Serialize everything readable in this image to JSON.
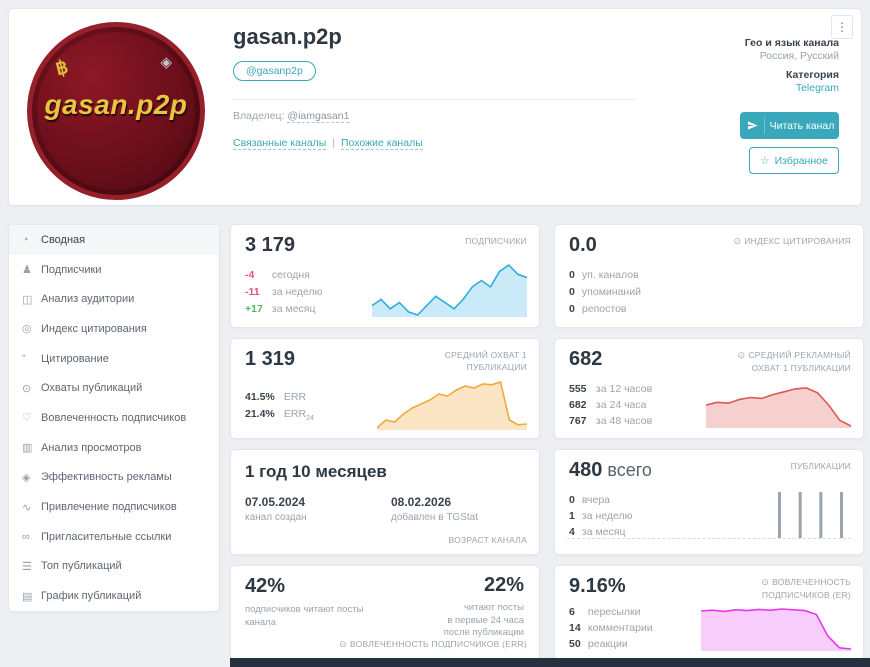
{
  "icons": {
    "target": "⊙",
    "star": "☆",
    "menu": "⋮"
  },
  "colors": {
    "accent_teal": "#38a8ba",
    "negative": "#e2556a",
    "positive": "#53b86a",
    "footer": "#263041"
  },
  "header": {
    "title": "gasan.p2p",
    "username_badge": "@gasanp2p",
    "owner_label": "Владелец:",
    "owner_link": "@iamgasan1",
    "related_link": "Связанные каналы",
    "links_divider": "|",
    "similar_link": "Похожие каналы",
    "geo_label": "Гео и язык канала",
    "geo_value": "Россия, Русский",
    "category_label": "Категория",
    "category_value": "Telegram",
    "read_button": "Читать канал",
    "favorite_button": "Избранное",
    "avatar": {
      "text": "gasan.p2p",
      "btc_symbol": "฿",
      "eth_symbol": "◈"
    }
  },
  "sidebar": {
    "active_index": 0,
    "items": [
      {
        "icon": "◔",
        "label": "Сводная"
      },
      {
        "icon": "♟",
        "label": "Подписчики"
      },
      {
        "icon": "◫",
        "label": "Анализ аудитории"
      },
      {
        "icon": "◎",
        "label": "Индекс цитирования"
      },
      {
        "icon": "”",
        "label": "Цитирование"
      },
      {
        "icon": "⊙",
        "label": "Охваты публикаций"
      },
      {
        "icon": "♡",
        "label": "Вовлеченность подписчиков"
      },
      {
        "icon": "▥",
        "label": "Анализ просмотров"
      },
      {
        "icon": "◈",
        "label": "Эффективность рекламы"
      },
      {
        "icon": "∿",
        "label": "Привлечение подписчиков"
      },
      {
        "icon": "∞",
        "label": "Пригласительные ссылки"
      },
      {
        "icon": "☰",
        "label": "Топ публикаций"
      },
      {
        "icon": "▤",
        "label": "График публикаций"
      }
    ]
  },
  "cards": {
    "subscribers": {
      "value": "3 179",
      "label": "ПОДПИСЧИКИ",
      "rows": [
        {
          "value": "-4",
          "label": "сегодня"
        },
        {
          "value": "-11",
          "label": "за неделю"
        },
        {
          "value": "+17",
          "label": "за месяц"
        }
      ]
    },
    "citation_index": {
      "value": "0.0",
      "label": "ИНДЕКС ЦИТИРОВАНИЯ",
      "rows": [
        {
          "value": "0",
          "label": "уп. каналов"
        },
        {
          "value": "0",
          "label": "упоминаний"
        },
        {
          "value": "0",
          "label": "репостов"
        }
      ]
    },
    "avg_reach": {
      "value": "1 319",
      "label": "СРЕДНИЙ ОХВАТ 1 ПУБЛИКАЦИИ",
      "rows": [
        {
          "value": "41.5%",
          "label": "ERR"
        },
        {
          "value": "21.4%",
          "label": "ERR",
          "label_sub": "24"
        }
      ]
    },
    "ad_reach": {
      "value": "682",
      "label": "СРЕДНИЙ РЕКЛАМНЫЙ ОХВАТ 1 ПУБЛИКАЦИИ",
      "rows": [
        {
          "value": "555",
          "label": "за 12 часов"
        },
        {
          "value": "682",
          "label": "за 24 часа"
        },
        {
          "value": "767",
          "label": "за 48 часов"
        }
      ]
    },
    "age": {
      "value": "1 год 10 месяцев",
      "label": "ВОЗРАСТ КАНАЛА",
      "created_date": "07.05.2024",
      "created_label": "канал создан",
      "added_date": "08.02.2026",
      "added_label": "добавлен в TGStat"
    },
    "publications": {
      "value": "480",
      "suffix": "всего",
      "label": "ПУБЛИКАЦИИ",
      "rows": [
        {
          "value": "0",
          "label": "вчера"
        },
        {
          "value": "1",
          "label": "за неделю"
        },
        {
          "value": "4",
          "label": "за месяц"
        }
      ]
    },
    "err": {
      "left_value": "42%",
      "left_caption": "подписчиков читают посты канала",
      "right_value": "22%",
      "right_caption_1": "читают посты",
      "right_caption_2": "в первые 24 часа",
      "right_caption_3": "после публикации",
      "label": "ВОВЛЕЧЕННОСТЬ ПОДПИСЧИКОВ (ERR)"
    },
    "er": {
      "value": "9.16%",
      "label": "ВОВЛЕЧЕННОСТЬ ПОДПИСЧИКОВ (ER)",
      "rows": [
        {
          "value": "6",
          "label": "пересылки"
        },
        {
          "value": "14",
          "label": "комментарии"
        },
        {
          "value": "50",
          "label": "реакции"
        }
      ]
    }
  },
  "charts": {
    "subscribers": {
      "type": "line",
      "color": "#2fadde",
      "fill": "rgba(47,173,222,0.25)",
      "values": [
        6,
        7,
        5.5,
        6.5,
        5,
        4.5,
        6,
        7.5,
        6.5,
        5.5,
        7,
        9,
        10,
        9,
        11.5,
        12.5,
        11,
        10.5
      ]
    },
    "avg_reach": {
      "type": "line",
      "color": "#f2a93b",
      "fill": "rgba(242,169,59,0.3)",
      "values": [
        2,
        4,
        3.5,
        5.5,
        7,
        8,
        9,
        10.5,
        10,
        11.5,
        12.5,
        12,
        13,
        12.8,
        13.5,
        4,
        2.8,
        3
      ]
    },
    "ad_reach": {
      "type": "line",
      "color": "#e0564e",
      "fill": "rgba(224,86,78,0.28)",
      "values": [
        8.2,
        8.5,
        8.4,
        8.8,
        9,
        8.9,
        9.3,
        9.6,
        9.9,
        10,
        9.5,
        8.2,
        6.6,
        6.0
      ]
    },
    "publications": {
      "type": "bar",
      "color": "#9aa4ae",
      "values": [
        1,
        1,
        1,
        1
      ]
    },
    "er": {
      "type": "line",
      "color": "#e438ef",
      "fill": "rgba(228,56,239,0.25)",
      "values": [
        11.9,
        12.1,
        11.8,
        12.2,
        12.0,
        12.3,
        12.1,
        12.4,
        12.2,
        12.0,
        11.0,
        5.5,
        2.5,
        2.2
      ]
    }
  }
}
